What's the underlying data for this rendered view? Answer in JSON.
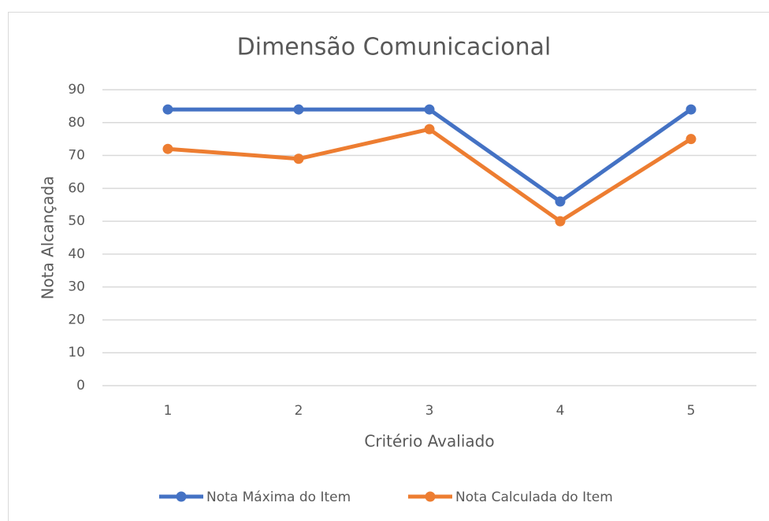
{
  "chart_data": {
    "type": "line",
    "title": "Dimensão Comunicacional",
    "xlabel": "Critério Avaliado",
    "ylabel": "Nota Alcançada",
    "categories": [
      "1",
      "2",
      "3",
      "4",
      "5"
    ],
    "series": [
      {
        "name": "Nota Máxima do Item",
        "color": "#4472c4",
        "values": [
          84,
          84,
          84,
          56,
          84
        ]
      },
      {
        "name": "Nota Calculada do Item",
        "color": "#ed7d31",
        "values": [
          72,
          69,
          78,
          50,
          75
        ]
      }
    ],
    "ylim": [
      0,
      90
    ],
    "yticks": [
      0,
      10,
      20,
      30,
      40,
      50,
      60,
      70,
      80,
      90
    ],
    "grid": true,
    "legend": "bottom"
  }
}
